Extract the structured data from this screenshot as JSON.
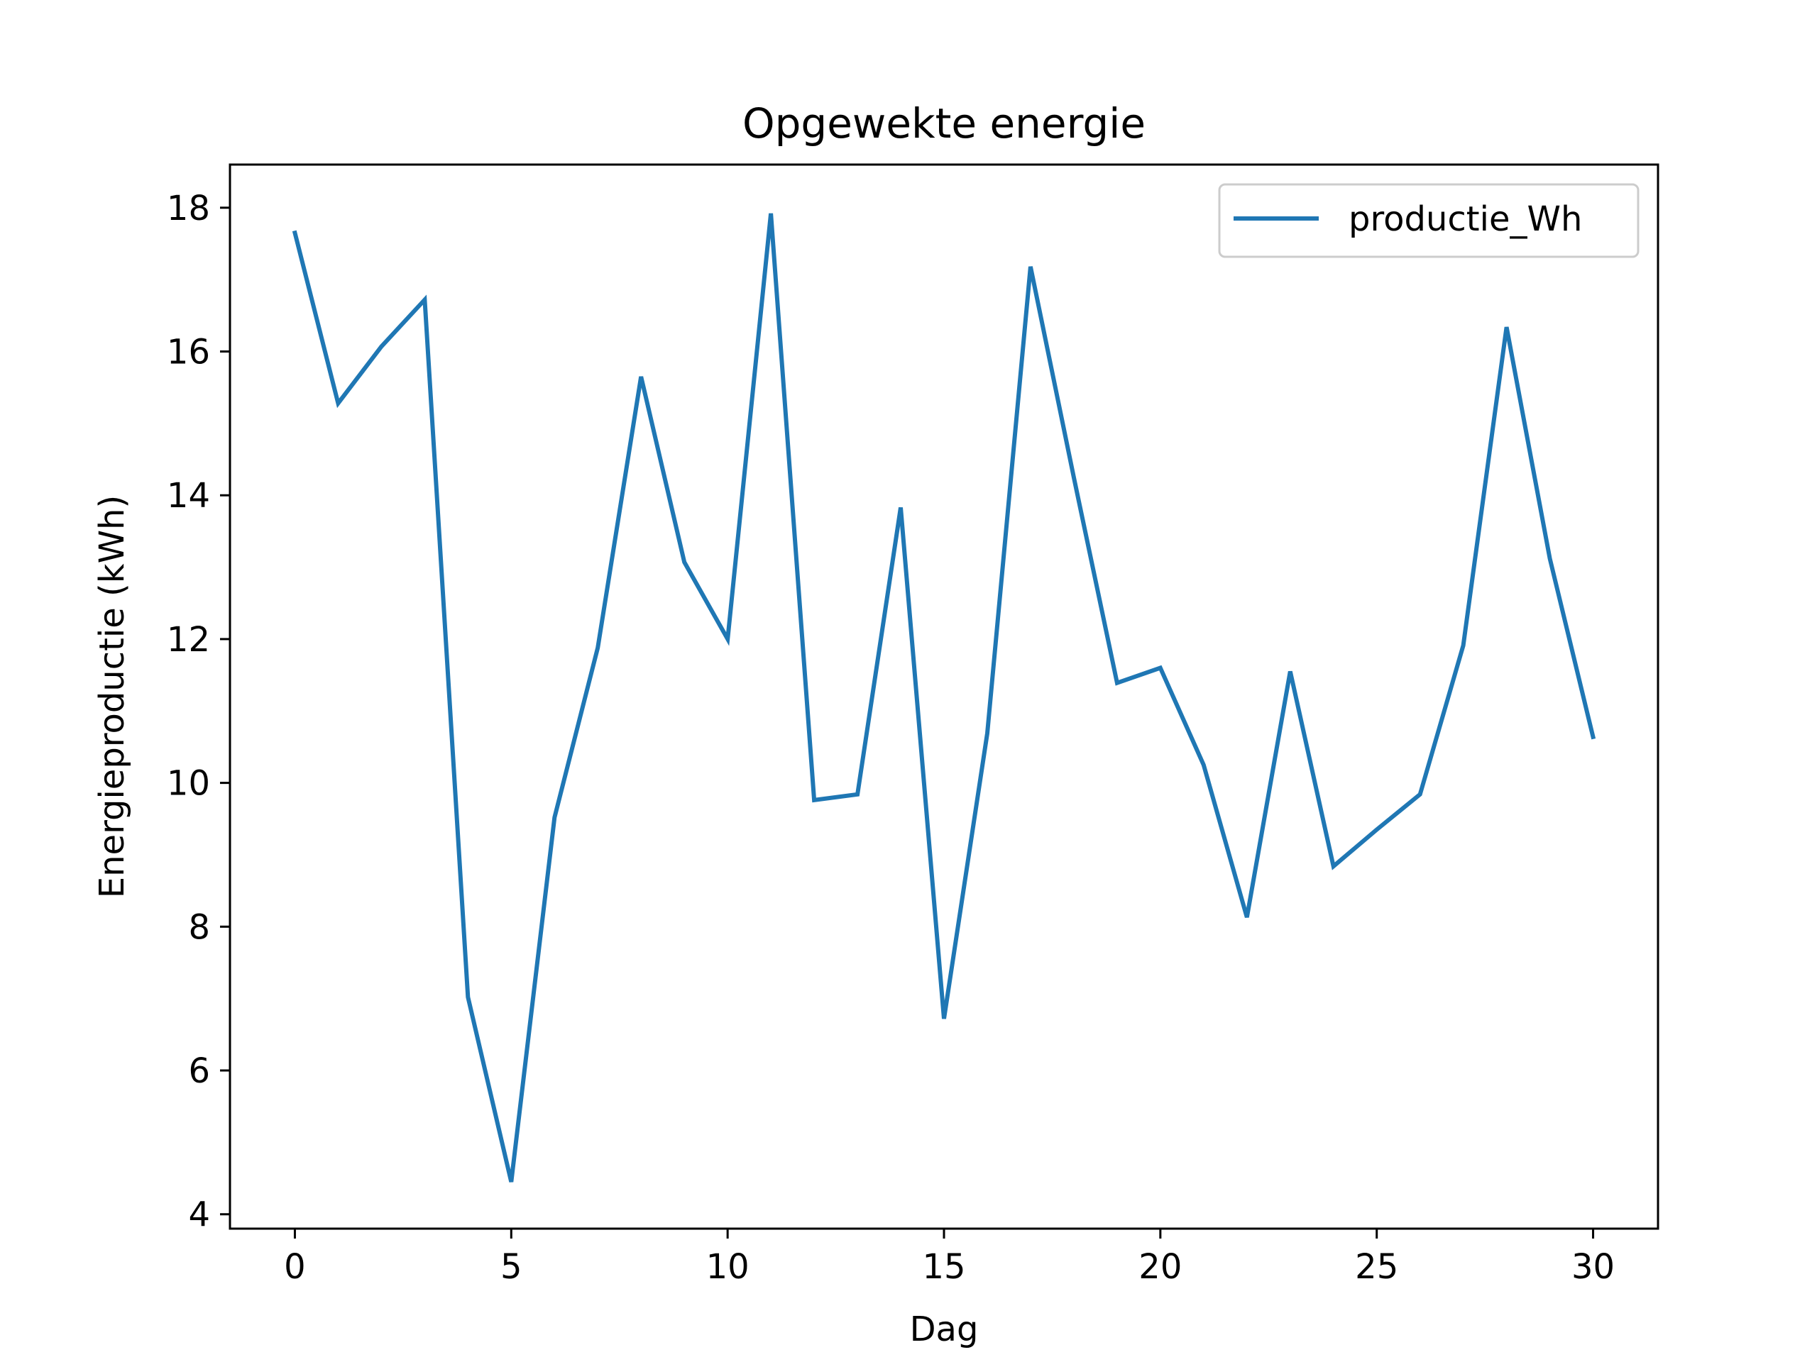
{
  "chart_data": {
    "type": "line",
    "title": "Opgewekte energie",
    "xlabel": "Dag",
    "ylabel": "Energieproductie (kWh)",
    "xlim": [
      -1.5,
      31.5
    ],
    "ylim": [
      3.8,
      18.6
    ],
    "xticks": [
      0,
      5,
      10,
      15,
      20,
      25,
      30
    ],
    "yticks": [
      4,
      6,
      8,
      10,
      12,
      14,
      16,
      18
    ],
    "grid": false,
    "legend_position": "top-right",
    "x": [
      0,
      1,
      2,
      3,
      4,
      5,
      6,
      7,
      8,
      9,
      10,
      11,
      12,
      13,
      14,
      15,
      16,
      17,
      18,
      19,
      20,
      21,
      22,
      23,
      24,
      25,
      26,
      27,
      28,
      29,
      30
    ],
    "series": [
      {
        "name": "productie_Wh",
        "color": "#1f77b4",
        "values": [
          17.65,
          15.28,
          16.07,
          16.72,
          7.02,
          4.45,
          9.52,
          11.88,
          15.65,
          13.07,
          12.0,
          17.92,
          9.76,
          9.84,
          13.83,
          6.72,
          10.69,
          17.18,
          14.25,
          11.39,
          11.6,
          10.25,
          8.13,
          11.55,
          8.84,
          9.35,
          9.84,
          11.91,
          16.34,
          13.12,
          10.64
        ]
      }
    ]
  }
}
